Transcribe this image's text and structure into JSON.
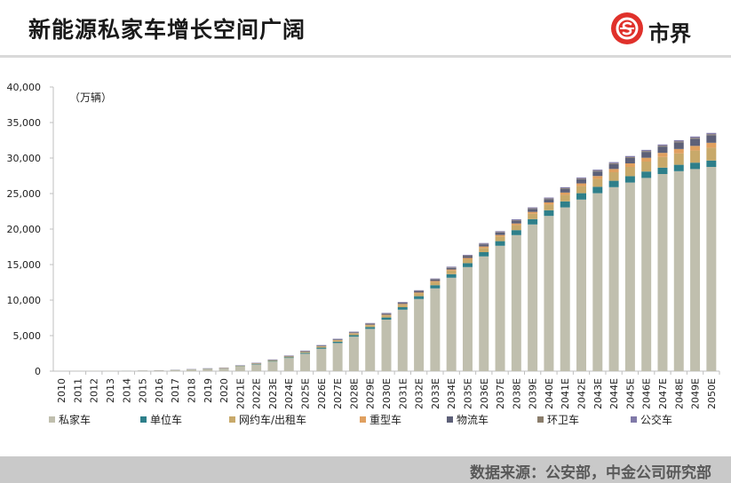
{
  "header": {
    "title": "新能源私家车增长空间广阔",
    "logo_text": "市界",
    "logo_icon": "logo-circle-icon",
    "accent_color": "#e0312b"
  },
  "footer": {
    "source": "数据来源：公安部，中金公司研究部"
  },
  "chart_data": {
    "type": "bar",
    "stacked": true,
    "unit_label": "（万辆）",
    "ylim": [
      0,
      40000
    ],
    "yticks": [
      "0",
      "5,000",
      "10,000",
      "15,000",
      "20,000",
      "25,000",
      "30,000",
      "35,000",
      "40,000"
    ],
    "grid": false,
    "legend_position": "bottom",
    "categories": [
      "2010",
      "2011",
      "2012",
      "2013",
      "2014",
      "2015",
      "2016",
      "2017",
      "2018",
      "2019",
      "2020",
      "2021E",
      "2022E",
      "2023E",
      "2024E",
      "2025E",
      "2026E",
      "2027E",
      "2028E",
      "2029E",
      "2030E",
      "2031E",
      "2032E",
      "2033E",
      "2034E",
      "2035E",
      "2036E",
      "2037E",
      "2038E",
      "2039E",
      "2040E",
      "2041E",
      "2042E",
      "2043E",
      "2044E",
      "2045E",
      "2046E",
      "2047E",
      "2048E",
      "2049E",
      "2050E"
    ],
    "series": [
      {
        "name": "私家车",
        "color": "#c0bfae",
        "values": [
          10,
          15,
          20,
          30,
          40,
          70,
          100,
          150,
          220,
          300,
          370,
          650,
          950,
          1350,
          1850,
          2450,
          3150,
          3950,
          4850,
          5950,
          7250,
          8650,
          10150,
          11650,
          13150,
          14650,
          16150,
          17650,
          19150,
          20650,
          21850,
          23050,
          24150,
          25050,
          25900,
          26550,
          27200,
          27750,
          28150,
          28450,
          28750
        ]
      },
      {
        "name": "单位车",
        "color": "#2e7f8a",
        "values": [
          0,
          0,
          0,
          0,
          5,
          5,
          5,
          10,
          15,
          20,
          25,
          40,
          60,
          80,
          100,
          130,
          160,
          190,
          220,
          260,
          300,
          350,
          400,
          450,
          500,
          550,
          600,
          650,
          700,
          750,
          800,
          850,
          900,
          900,
          900,
          900,
          900,
          900,
          900,
          900,
          900
        ]
      },
      {
        "name": "网约车/出租车",
        "color": "#c8a96a",
        "values": [
          0,
          0,
          0,
          0,
          0,
          5,
          5,
          10,
          20,
          30,
          40,
          50,
          60,
          80,
          100,
          120,
          150,
          180,
          220,
          260,
          300,
          350,
          400,
          450,
          500,
          550,
          600,
          650,
          700,
          750,
          800,
          900,
          1000,
          1100,
          1200,
          1300,
          1400,
          1500,
          1600,
          1700,
          1800
        ]
      },
      {
        "name": "重型车",
        "color": "#e0a060",
        "values": [
          0,
          0,
          0,
          0,
          0,
          0,
          0,
          0,
          0,
          0,
          5,
          10,
          15,
          20,
          25,
          30,
          40,
          50,
          60,
          70,
          80,
          100,
          120,
          140,
          160,
          180,
          200,
          220,
          240,
          270,
          300,
          340,
          380,
          420,
          460,
          500,
          540,
          580,
          620,
          660,
          700
        ]
      },
      {
        "name": "物流车",
        "color": "#5d6078",
        "values": [
          0,
          0,
          0,
          0,
          0,
          5,
          5,
          10,
          15,
          20,
          25,
          30,
          40,
          50,
          60,
          70,
          80,
          90,
          100,
          120,
          140,
          160,
          180,
          200,
          230,
          260,
          300,
          340,
          380,
          420,
          460,
          520,
          580,
          640,
          700,
          760,
          820,
          880,
          940,
          1000,
          1060
        ]
      },
      {
        "name": "环卫车",
        "color": "#8a7d6b",
        "values": [
          0,
          0,
          0,
          0,
          0,
          0,
          0,
          0,
          0,
          0,
          0,
          5,
          5,
          10,
          10,
          15,
          20,
          20,
          25,
          30,
          35,
          40,
          45,
          50,
          55,
          60,
          65,
          70,
          75,
          80,
          85,
          90,
          95,
          100,
          105,
          110,
          115,
          120,
          125,
          130,
          135
        ]
      },
      {
        "name": "公交车",
        "color": "#8079a8",
        "values": [
          0,
          0,
          0,
          0,
          5,
          10,
          15,
          20,
          30,
          35,
          40,
          45,
          50,
          55,
          60,
          65,
          70,
          75,
          80,
          85,
          90,
          95,
          100,
          105,
          110,
          115,
          120,
          125,
          130,
          135,
          140,
          145,
          150,
          155,
          160,
          165,
          170,
          175,
          180,
          185,
          190
        ]
      }
    ]
  }
}
